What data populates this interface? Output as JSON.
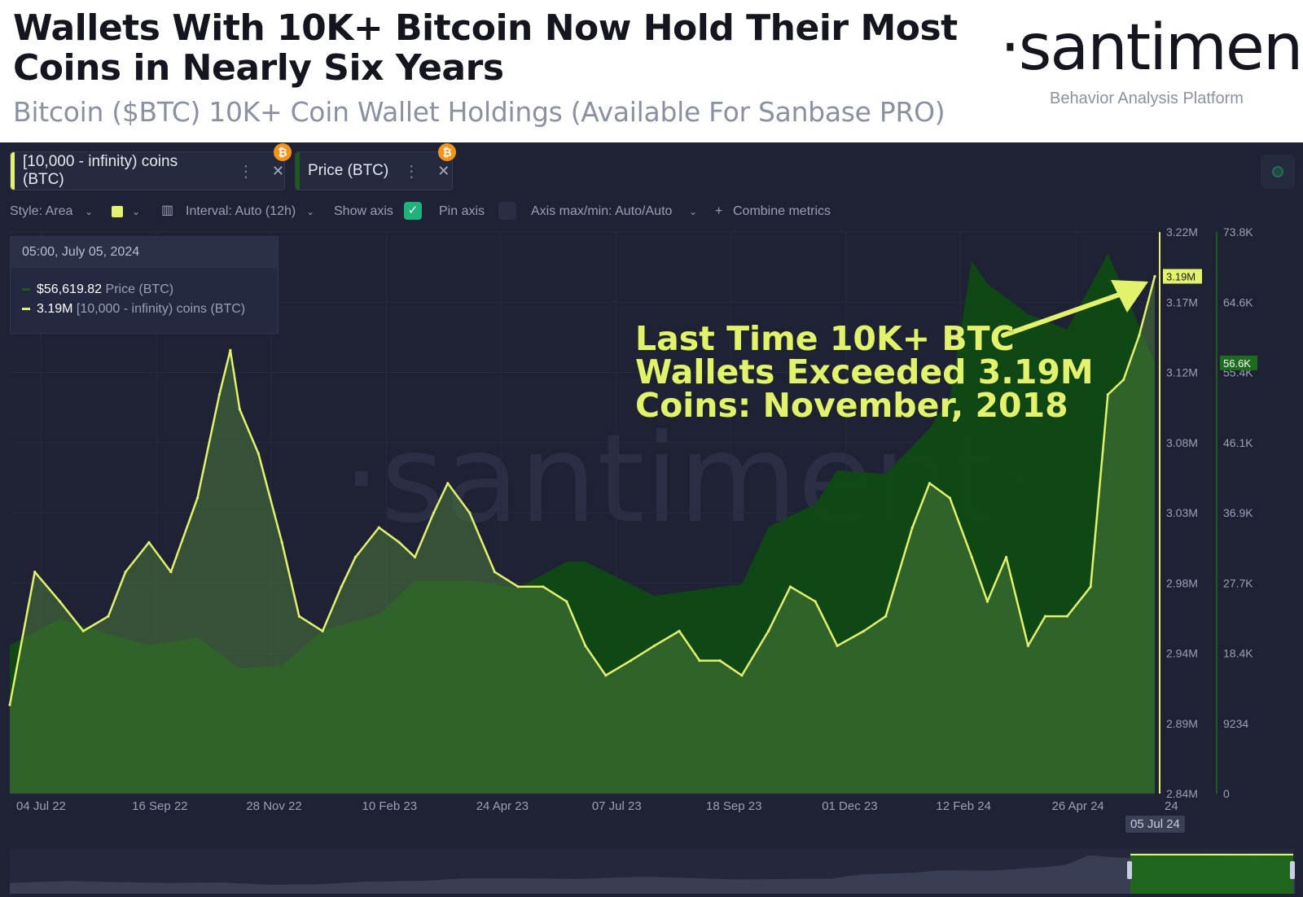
{
  "header": {
    "title": "Wallets With 10K+ Bitcoin Now Hold Their Most Coins in Nearly Six Years",
    "subtitle": "Bitcoin ($BTC) 10K+ Coin Wallet Holdings (Available For Sanbase PRO)",
    "logo": "·santiment·",
    "logo_tagline": "Behavior Analysis Platform"
  },
  "metric_chips": [
    {
      "label": "[10,000 - infinity) coins (BTC)",
      "color": "#e2f26c",
      "badge": "₿"
    },
    {
      "label": "Price (BTC)",
      "color": "#1e5a1a",
      "badge": "₿"
    }
  ],
  "toolbar": {
    "style": "Style: Area",
    "interval": "Interval: Auto (12h)",
    "show_axis": "Show axis",
    "show_axis_checked": "✓",
    "pin_axis": "Pin axis",
    "axis_minmax": "Axis max/min: Auto/Auto",
    "combine": "Combine metrics"
  },
  "tooltip": {
    "date": "05:00, July 05, 2024",
    "price_value": "$56,619.82",
    "price_name": "Price (BTC)",
    "coins_value": "3.19M",
    "coins_name": "[10,000 - infinity) coins (BTC)"
  },
  "annotation": {
    "line1": "Last Time 10K+ BTC",
    "line2": "Wallets Exceeded 3.19M",
    "line3": "Coins: November, 2018"
  },
  "watermark": "·santiment·",
  "end_date_label": "05 Jul 24",
  "colors": {
    "coins_line": "#e2f26c",
    "price_area": "#0f4a14",
    "coins_area": "#3d6a2a",
    "background": "#1f2135"
  },
  "chart_data": {
    "type": "area",
    "x_ticks": [
      "04 Jul 22",
      "16 Sep 22",
      "28 Nov 22",
      "10 Feb 23",
      "24 Apr 23",
      "07 Jul 23",
      "18 Sep 23",
      "01 Dec 23",
      "12 Feb 24",
      "26 Apr 24",
      "24"
    ],
    "y_left": {
      "label": "",
      "ticks": [
        "3.22M",
        "3.17M",
        "3.12M",
        "3.08M",
        "3.03M",
        "2.98M",
        "2.94M",
        "2.89M",
        "2.84M"
      ],
      "range": [
        2.84,
        3.22
      ],
      "current": "3.19M"
    },
    "y_right": {
      "label": "",
      "ticks": [
        "73.8K",
        "64.6K",
        "55.4K",
        "46.1K",
        "36.9K",
        "27.7K",
        "18.4K",
        "9234",
        "0"
      ],
      "range": [
        0,
        73800
      ],
      "current": "56.6K"
    },
    "series": [
      {
        "name": "[10,000 - infinity) coins (BTC)",
        "unit": "M BTC",
        "x": [
          "2022-07-04",
          "2022-07-20",
          "2022-08-05",
          "2022-08-20",
          "2022-09-05",
          "2022-09-16",
          "2022-10-01",
          "2022-10-15",
          "2022-11-01",
          "2022-11-15",
          "2022-11-22",
          "2022-11-28",
          "2022-12-10",
          "2022-12-25",
          "2023-01-05",
          "2023-01-20",
          "2023-02-01",
          "2023-02-10",
          "2023-02-25",
          "2023-03-10",
          "2023-03-20",
          "2023-04-01",
          "2023-04-10",
          "2023-04-24",
          "2023-05-10",
          "2023-05-25",
          "2023-06-10",
          "2023-06-25",
          "2023-07-07",
          "2023-07-20",
          "2023-08-05",
          "2023-08-20",
          "2023-09-05",
          "2023-09-18",
          "2023-10-01",
          "2023-10-15",
          "2023-11-01",
          "2023-11-15",
          "2023-12-01",
          "2023-12-15",
          "2024-01-01",
          "2024-01-15",
          "2024-02-01",
          "2024-02-12",
          "2024-02-25",
          "2024-03-10",
          "2024-03-20",
          "2024-04-01",
          "2024-04-15",
          "2024-04-26",
          "2024-05-10",
          "2024-05-25",
          "2024-06-05",
          "2024-06-15",
          "2024-06-25",
          "2024-07-05"
        ],
        "values": [
          2.9,
          2.99,
          2.97,
          2.95,
          2.96,
          2.99,
          3.01,
          2.99,
          3.04,
          3.11,
          3.14,
          3.1,
          3.07,
          3.01,
          2.96,
          2.95,
          2.98,
          3.0,
          3.02,
          3.01,
          3.0,
          3.03,
          3.05,
          3.03,
          2.99,
          2.98,
          2.98,
          2.97,
          2.94,
          2.92,
          2.93,
          2.94,
          2.95,
          2.93,
          2.93,
          2.92,
          2.95,
          2.98,
          2.97,
          2.94,
          2.95,
          2.96,
          3.02,
          3.05,
          3.04,
          3.0,
          2.97,
          3.0,
          2.94,
          2.96,
          2.96,
          2.98,
          3.11,
          3.12,
          3.15,
          3.19
        ]
      },
      {
        "name": "Price (BTC)",
        "unit": "USD",
        "x": [
          "2022-07-04",
          "2022-08-05",
          "2022-09-05",
          "2022-10-01",
          "2022-11-01",
          "2022-11-28",
          "2022-12-25",
          "2023-01-20",
          "2023-02-25",
          "2023-03-20",
          "2023-04-24",
          "2023-05-25",
          "2023-06-25",
          "2023-07-07",
          "2023-08-20",
          "2023-09-18",
          "2023-10-15",
          "2023-11-01",
          "2023-11-15",
          "2023-12-01",
          "2023-12-15",
          "2024-01-15",
          "2024-02-12",
          "2024-02-25",
          "2024-03-10",
          "2024-03-20",
          "2024-04-15",
          "2024-05-10",
          "2024-06-05",
          "2024-06-25",
          "2024-07-05"
        ],
        "values": [
          19500,
          23000,
          21000,
          19500,
          20500,
          16500,
          16800,
          21500,
          23500,
          28000,
          28000,
          27000,
          30500,
          30500,
          26000,
          26800,
          27500,
          35000,
          36500,
          38000,
          42500,
          42000,
          48000,
          52000,
          70000,
          67000,
          63000,
          61000,
          71000,
          61500,
          56600
        ]
      }
    ]
  }
}
